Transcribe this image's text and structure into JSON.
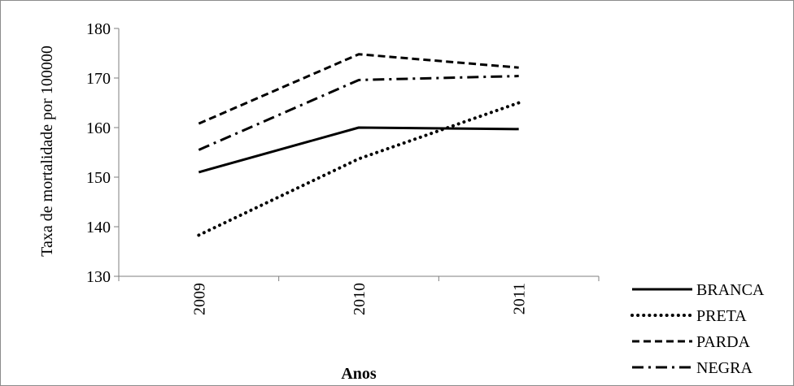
{
  "chart_data": {
    "type": "line",
    "title": "",
    "xlabel": "Anos",
    "ylabel": "Taxa de mortalidade por 100000",
    "categories": [
      "2009",
      "2010",
      "2011"
    ],
    "ylim": [
      130,
      180
    ],
    "yticks": [
      130,
      140,
      150,
      160,
      170,
      180
    ],
    "grid": false,
    "legend_position": "bottom-right",
    "series": [
      {
        "name": "BRANCA",
        "values": [
          151.0,
          160.0,
          159.7
        ],
        "style": "solid",
        "color": "#000000"
      },
      {
        "name": "PRETA",
        "values": [
          138.3,
          153.7,
          165.0
        ],
        "style": "dotted",
        "color": "#000000"
      },
      {
        "name": "PARDA",
        "values": [
          160.8,
          174.8,
          172.1
        ],
        "style": "dashed",
        "color": "#000000"
      },
      {
        "name": "NEGRA",
        "values": [
          155.5,
          169.6,
          170.4
        ],
        "style": "dashdot",
        "color": "#000000"
      }
    ]
  }
}
